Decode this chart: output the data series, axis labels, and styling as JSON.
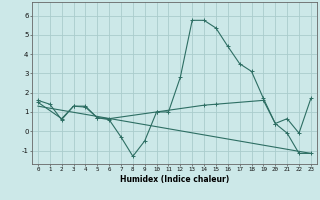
{
  "xlabel": "Humidex (Indice chaleur)",
  "xlim": [
    -0.5,
    23.5
  ],
  "ylim": [
    -1.7,
    6.7
  ],
  "yticks": [
    -1,
    0,
    1,
    2,
    3,
    4,
    5,
    6
  ],
  "xticks": [
    0,
    1,
    2,
    3,
    4,
    5,
    6,
    7,
    8,
    9,
    10,
    11,
    12,
    13,
    14,
    15,
    16,
    17,
    18,
    19,
    20,
    21,
    22,
    23
  ],
  "background_color": "#cce8e8",
  "grid_color": "#aacccc",
  "line_color": "#2d6e63",
  "line1_x": [
    0,
    1,
    2,
    3,
    4,
    5,
    6,
    7,
    8,
    9,
    10,
    11,
    12,
    13,
    14,
    15,
    16,
    17,
    18,
    19,
    20,
    21,
    22,
    23
  ],
  "line1_y": [
    1.6,
    1.4,
    0.6,
    1.3,
    1.3,
    0.7,
    0.6,
    -0.3,
    -1.3,
    -0.5,
    1.0,
    1.0,
    2.8,
    5.75,
    5.75,
    5.35,
    4.4,
    3.5,
    3.1,
    1.7,
    0.4,
    -0.1,
    -1.15,
    -1.15
  ],
  "line2_x": [
    0,
    2,
    3,
    4,
    5,
    6,
    10,
    14,
    15,
    19,
    20,
    21,
    22,
    23
  ],
  "line2_y": [
    1.5,
    0.65,
    1.3,
    1.25,
    0.7,
    0.65,
    1.0,
    1.35,
    1.4,
    1.6,
    0.4,
    0.65,
    -0.1,
    1.7
  ],
  "line3_x": [
    0,
    23
  ],
  "line3_y": [
    1.3,
    -1.15
  ]
}
